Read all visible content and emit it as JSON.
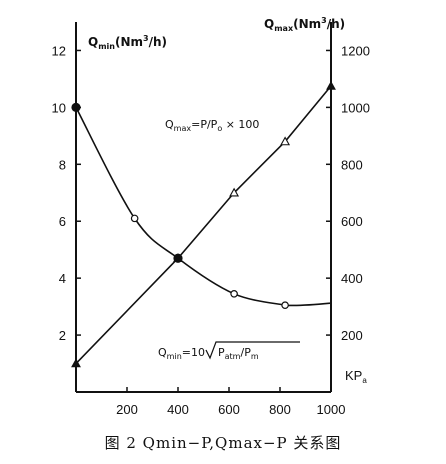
{
  "caption": "图 2   Qmin−P,Qmax−P 关系图",
  "chart_data": {
    "type": "line",
    "x_ticks": [
      "200",
      "400",
      "600",
      "800",
      "1000"
    ],
    "x_unit_label": "KPa",
    "xlim": [
      0,
      1000
    ],
    "left_axis": {
      "label": "Qmin(Nm³/h)",
      "ticks": [
        "2",
        "4",
        "6",
        "8",
        "10",
        "12"
      ],
      "ylim": [
        0,
        13
      ]
    },
    "right_axis": {
      "label": "Qmax(Nm³/h)",
      "ticks": [
        "200",
        "400",
        "600",
        "800",
        "1000",
        "1200"
      ],
      "ylim": [
        0,
        1300
      ]
    },
    "series": [
      {
        "equation": "Qmin=10√(Patm/Pm)",
        "axis": "left",
        "marker": "open-circle",
        "points": [
          [
            0,
            10.0
          ],
          [
            230,
            6.1
          ],
          [
            400,
            4.7
          ],
          [
            620,
            3.45
          ],
          [
            820,
            3.05
          ]
        ]
      },
      {
        "equation": "Qmax=P/Po×100",
        "axis": "right",
        "marker": "open-triangle",
        "points": [
          [
            0,
            100
          ],
          [
            400,
            470
          ],
          [
            620,
            700
          ],
          [
            820,
            880
          ],
          [
            1000,
            1075
          ]
        ]
      }
    ]
  }
}
